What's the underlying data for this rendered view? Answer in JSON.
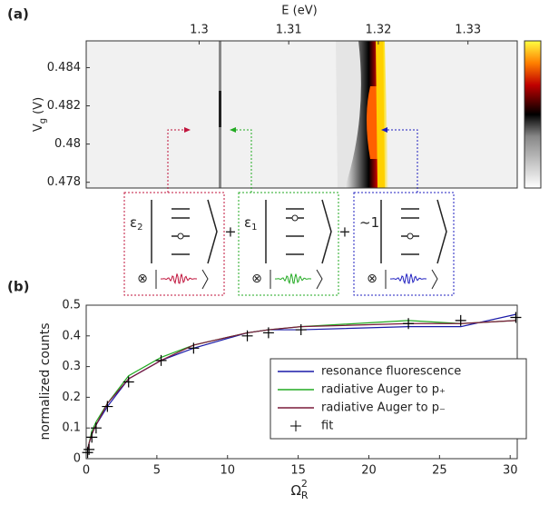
{
  "chart_data": [
    {
      "type": "heatmap",
      "label": "(a)",
      "xlabel": "E (eV)",
      "ylabel": "V",
      "ylabel_sub": "g",
      "ylabel_rest": "(V)",
      "xlim": [
        1.2874,
        1.3355
      ],
      "xticks": [
        1.3,
        1.31,
        1.32,
        1.33
      ],
      "ylim": [
        0.4777,
        0.4854
      ],
      "yticks": [
        0.478,
        0.48,
        0.482,
        0.484
      ],
      "states": [
        {
          "coef": "ε",
          "coef_sub": "2",
          "color": "#c0143c"
        },
        {
          "coef": "ε",
          "coef_sub": "1",
          "color": "#22aa22"
        },
        {
          "coef": "~1",
          "color": "#2020c0"
        }
      ],
      "plus": "+",
      "tensor": "⊗"
    },
    {
      "type": "line",
      "label": "(b)",
      "xlabel": "Ω",
      "xlabel_sup": "2",
      "xlabel_sub": "R",
      "ylabel": "normalized counts",
      "xlim": [
        0,
        30.5
      ],
      "xticks": [
        0,
        5,
        10,
        15,
        20,
        25,
        30
      ],
      "ylim": [
        0,
        0.5
      ],
      "yticks": [
        0,
        0.1,
        0.2,
        0.3,
        0.4,
        0.5
      ],
      "x": [
        0.1,
        0.2,
        0.4,
        0.7,
        1.5,
        3,
        5.3,
        7.6,
        11.4,
        12.9,
        15.2,
        22.8,
        26.5,
        30.4
      ],
      "series": [
        {
          "name": "resonance fluorescence",
          "color": "#1a1aa8",
          "values": [
            0.03,
            0.05,
            0.08,
            0.11,
            0.17,
            0.26,
            0.32,
            0.36,
            0.41,
            0.42,
            0.42,
            0.43,
            0.43,
            0.47
          ]
        },
        {
          "name": "radiative Auger to p₊",
          "color": "#22aa22",
          "values": [
            0.03,
            0.05,
            0.09,
            0.12,
            0.18,
            0.27,
            0.33,
            0.37,
            0.41,
            0.42,
            0.43,
            0.45,
            0.44,
            0.45
          ]
        },
        {
          "name": "radiative Auger to p₋",
          "color": "#7a1a3a",
          "values": [
            0.03,
            0.05,
            0.08,
            0.11,
            0.18,
            0.26,
            0.32,
            0.37,
            0.41,
            0.42,
            0.43,
            0.44,
            0.44,
            0.45
          ]
        },
        {
          "name": "fit",
          "color": "#000000",
          "marker": "+",
          "values": [
            0.02,
            0.03,
            0.07,
            0.1,
            0.17,
            0.25,
            0.32,
            0.36,
            0.4,
            0.41,
            0.42,
            0.44,
            0.45,
            0.46
          ]
        }
      ],
      "legend": "lower right"
    }
  ]
}
